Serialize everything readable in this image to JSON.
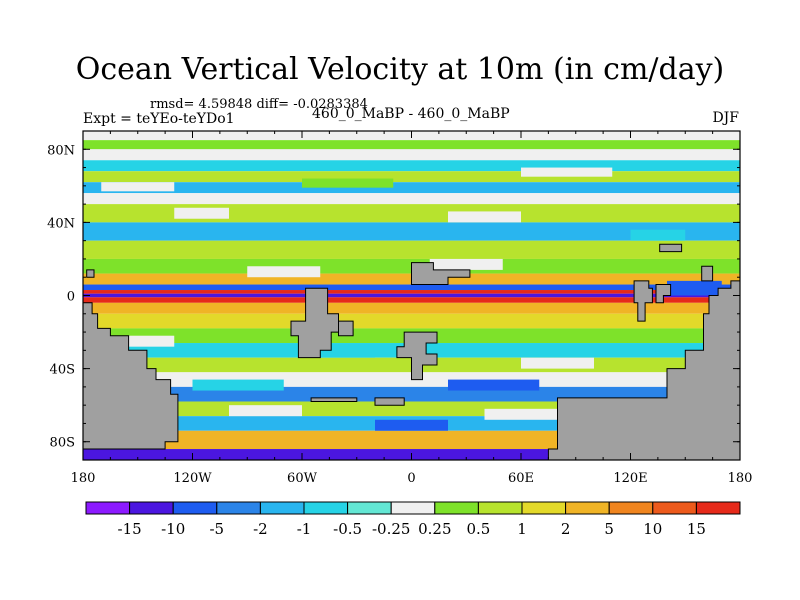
{
  "chart_data": {
    "type": "heatmap",
    "title": "Ocean Vertical Velocity at 10m (in cm/day)",
    "left_stats": "rmsd= 4.59848 diff= -0.0283384",
    "left_label": "Expt = teYEo-teYDo1",
    "center_label": "460_0_MaBP - 460_0_MaBP",
    "right_label": "DJF",
    "xlim": [
      -180,
      180
    ],
    "ylim": [
      -90,
      90
    ],
    "x_ticks": [
      {
        "value": -180,
        "label": "180"
      },
      {
        "value": -120,
        "label": "120W"
      },
      {
        "value": -60,
        "label": "60W"
      },
      {
        "value": 0,
        "label": "0"
      },
      {
        "value": 60,
        "label": "60E"
      },
      {
        "value": 120,
        "label": "120E"
      },
      {
        "value": 180,
        "label": "180"
      }
    ],
    "y_ticks": [
      {
        "value": 80,
        "label": "80N"
      },
      {
        "value": 40,
        "label": "40N"
      },
      {
        "value": 0,
        "label": "0"
      },
      {
        "value": -40,
        "label": "40S"
      },
      {
        "value": -80,
        "label": "80S"
      }
    ],
    "colorbar": {
      "labels": [
        "-15",
        "-10",
        "-5",
        "-2",
        "-1",
        "-0.5",
        "-0.25",
        "0.25",
        "0.5",
        "1",
        "2",
        "5",
        "10",
        "15"
      ],
      "colors": [
        "#8c1aff",
        "#4b16e0",
        "#1e5cf0",
        "#2b84e8",
        "#29b5ef",
        "#26d3e6",
        "#63e7d4",
        "#f0f0f0",
        "#7ee22a",
        "#b7e32e",
        "#e3d92a",
        "#f0b426",
        "#f0851f",
        "#ed5a1c",
        "#e62a1a"
      ]
    },
    "bands": [
      {
        "lat_top": 90,
        "lat_bottom": 85,
        "color": "#f0f0f0"
      },
      {
        "lat_top": 85,
        "lat_bottom": 80,
        "color": "#7ee22a"
      },
      {
        "lat_top": 80,
        "lat_bottom": 74,
        "color": "#f0f0f0"
      },
      {
        "lat_top": 74,
        "lat_bottom": 68,
        "color": "#26d3e6"
      },
      {
        "lat_top": 68,
        "lat_bottom": 62,
        "color": "#b7e32e"
      },
      {
        "lat_top": 62,
        "lat_bottom": 56,
        "color": "#29b5ef"
      },
      {
        "lat_top": 56,
        "lat_bottom": 50,
        "color": "#f0f0f0"
      },
      {
        "lat_top": 50,
        "lat_bottom": 40,
        "color": "#b7e32e"
      },
      {
        "lat_top": 40,
        "lat_bottom": 30,
        "color": "#29b5ef"
      },
      {
        "lat_top": 30,
        "lat_bottom": 20,
        "color": "#b7e32e"
      },
      {
        "lat_top": 20,
        "lat_bottom": 12,
        "color": "#7ee22a"
      },
      {
        "lat_top": 12,
        "lat_bottom": 6,
        "color": "#f0b426"
      },
      {
        "lat_top": 6,
        "lat_bottom": 3,
        "color": "#1e5cf0"
      },
      {
        "lat_top": 3,
        "lat_bottom": 1,
        "color": "#e62a1a"
      },
      {
        "lat_top": 1,
        "lat_bottom": -1,
        "color": "#4b16e0"
      },
      {
        "lat_top": -1,
        "lat_bottom": -4,
        "color": "#e62a1a"
      },
      {
        "lat_top": -4,
        "lat_bottom": -10,
        "color": "#f0b426"
      },
      {
        "lat_top": -10,
        "lat_bottom": -18,
        "color": "#e3d92a"
      },
      {
        "lat_top": -18,
        "lat_bottom": -26,
        "color": "#7ee22a"
      },
      {
        "lat_top": -26,
        "lat_bottom": -34,
        "color": "#26d3e6"
      },
      {
        "lat_top": -34,
        "lat_bottom": -42,
        "color": "#b7e32e"
      },
      {
        "lat_top": -42,
        "lat_bottom": -50,
        "color": "#f0f0f0"
      },
      {
        "lat_top": -50,
        "lat_bottom": -58,
        "color": "#2b84e8"
      },
      {
        "lat_top": -58,
        "lat_bottom": -66,
        "color": "#b7e32e"
      },
      {
        "lat_top": -66,
        "lat_bottom": -74,
        "color": "#29b5ef"
      },
      {
        "lat_top": -74,
        "lat_bottom": -84,
        "color": "#f0b426"
      },
      {
        "lat_top": -84,
        "lat_bottom": -90,
        "color": "#4b16e0"
      }
    ],
    "patches": [
      {
        "lon": -170,
        "lat": 62,
        "w": 40,
        "h": 5,
        "color": "#f0f0f0"
      },
      {
        "lon": -60,
        "lat": 64,
        "w": 50,
        "h": 5,
        "color": "#7ee22a"
      },
      {
        "lon": 60,
        "lat": 70,
        "w": 50,
        "h": 5,
        "color": "#f0f0f0"
      },
      {
        "lon": -130,
        "lat": 48,
        "w": 30,
        "h": 6,
        "color": "#f0f0f0"
      },
      {
        "lon": 20,
        "lat": 46,
        "w": 40,
        "h": 6,
        "color": "#f0f0f0"
      },
      {
        "lon": 120,
        "lat": 36,
        "w": 30,
        "h": 6,
        "color": "#26d3e6"
      },
      {
        "lon": -90,
        "lat": 16,
        "w": 40,
        "h": 6,
        "color": "#f0f0f0"
      },
      {
        "lon": 10,
        "lat": 20,
        "w": 40,
        "h": 6,
        "color": "#f0f0f0"
      },
      {
        "lon": 140,
        "lat": 8,
        "w": 30,
        "h": 8,
        "color": "#1e5cf0"
      },
      {
        "lon": -160,
        "lat": -22,
        "w": 30,
        "h": 6,
        "color": "#f0f0f0"
      },
      {
        "lon": -60,
        "lat": -28,
        "w": 40,
        "h": 6,
        "color": "#26d3e6"
      },
      {
        "lon": 60,
        "lat": -34,
        "w": 40,
        "h": 6,
        "color": "#f0f0f0"
      },
      {
        "lon": -120,
        "lat": -46,
        "w": 50,
        "h": 6,
        "color": "#26d3e6"
      },
      {
        "lon": 20,
        "lat": -46,
        "w": 50,
        "h": 6,
        "color": "#1e5cf0"
      },
      {
        "lon": -100,
        "lat": -60,
        "w": 40,
        "h": 6,
        "color": "#f0f0f0"
      },
      {
        "lon": 40,
        "lat": -62,
        "w": 60,
        "h": 6,
        "color": "#f0f0f0"
      },
      {
        "lon": -20,
        "lat": -68,
        "w": 40,
        "h": 6,
        "color": "#1e5cf0"
      }
    ],
    "land": [
      {
        "name": "land-southwest",
        "color": "#a0a0a0",
        "points": [
          [
            -180,
            -4
          ],
          [
            -175,
            -4
          ],
          [
            -175,
            -10
          ],
          [
            -172,
            -10
          ],
          [
            -172,
            -18
          ],
          [
            -165,
            -18
          ],
          [
            -165,
            -22
          ],
          [
            -155,
            -22
          ],
          [
            -155,
            -30
          ],
          [
            -145,
            -30
          ],
          [
            -145,
            -40
          ],
          [
            -140,
            -40
          ],
          [
            -140,
            -46
          ],
          [
            -132,
            -46
          ],
          [
            -132,
            -54
          ],
          [
            -128,
            -54
          ],
          [
            -128,
            -64
          ],
          [
            -128,
            -80
          ],
          [
            -135,
            -80
          ],
          [
            -135,
            -84
          ],
          [
            -180,
            -84
          ],
          [
            -180,
            -90
          ]
        ]
      },
      {
        "name": "land-southeast",
        "color": "#a0a0a0",
        "points": [
          [
            180,
            -90
          ],
          [
            180,
            8
          ],
          [
            175,
            8
          ],
          [
            175,
            4
          ],
          [
            168,
            4
          ],
          [
            168,
            0
          ],
          [
            163,
            0
          ],
          [
            163,
            -10
          ],
          [
            160,
            -10
          ],
          [
            160,
            -30
          ],
          [
            150,
            -30
          ],
          [
            150,
            -40
          ],
          [
            140,
            -40
          ],
          [
            140,
            -56
          ],
          [
            80,
            -56
          ],
          [
            80,
            -84
          ],
          [
            75,
            -84
          ],
          [
            75,
            -90
          ]
        ]
      },
      {
        "name": "land-island-1",
        "color": "#a0a0a0",
        "points": [
          [
            -58,
            4
          ],
          [
            -46,
            4
          ],
          [
            -46,
            -10
          ],
          [
            -40,
            -10
          ],
          [
            -40,
            -20
          ],
          [
            -44,
            -20
          ],
          [
            -44,
            -30
          ],
          [
            -50,
            -30
          ],
          [
            -50,
            -34
          ],
          [
            -62,
            -34
          ],
          [
            -62,
            -22
          ],
          [
            -66,
            -22
          ],
          [
            -66,
            -14
          ],
          [
            -58,
            -14
          ]
        ]
      },
      {
        "name": "land-island-2",
        "color": "#a0a0a0",
        "points": [
          [
            -40,
            -14
          ],
          [
            -32,
            -14
          ],
          [
            -32,
            -22
          ],
          [
            -40,
            -22
          ]
        ]
      },
      {
        "name": "land-island-3",
        "color": "#a0a0a0",
        "points": [
          [
            -4,
            -20
          ],
          [
            14,
            -20
          ],
          [
            14,
            -26
          ],
          [
            8,
            -26
          ],
          [
            8,
            -32
          ],
          [
            14,
            -32
          ],
          [
            14,
            -38
          ],
          [
            6,
            -38
          ],
          [
            6,
            -46
          ],
          [
            0,
            -46
          ],
          [
            0,
            -34
          ],
          [
            -8,
            -34
          ],
          [
            -8,
            -28
          ],
          [
            -4,
            -28
          ]
        ]
      },
      {
        "name": "land-island-4",
        "color": "#a0a0a0",
        "points": [
          [
            0,
            18
          ],
          [
            12,
            18
          ],
          [
            12,
            14
          ],
          [
            32,
            14
          ],
          [
            32,
            10
          ],
          [
            20,
            10
          ],
          [
            20,
            6
          ],
          [
            0,
            6
          ]
        ]
      },
      {
        "name": "land-island-5",
        "color": "#a0a0a0",
        "points": [
          [
            122,
            8
          ],
          [
            130,
            8
          ],
          [
            130,
            4
          ],
          [
            132,
            4
          ],
          [
            132,
            -4
          ],
          [
            128,
            -4
          ],
          [
            128,
            -14
          ],
          [
            124,
            -14
          ],
          [
            124,
            -4
          ],
          [
            122,
            -4
          ]
        ]
      },
      {
        "name": "land-island-6",
        "color": "#a0a0a0",
        "points": [
          [
            134,
            6
          ],
          [
            142,
            6
          ],
          [
            142,
            0
          ],
          [
            138,
            0
          ],
          [
            138,
            -4
          ],
          [
            134,
            -4
          ]
        ]
      },
      {
        "name": "land-island-7",
        "color": "#a0a0a0",
        "points": [
          [
            136,
            28
          ],
          [
            148,
            28
          ],
          [
            148,
            24
          ],
          [
            136,
            24
          ]
        ]
      },
      {
        "name": "land-island-8",
        "color": "#a0a0a0",
        "points": [
          [
            159,
            16
          ],
          [
            165,
            16
          ],
          [
            165,
            8
          ],
          [
            159,
            8
          ]
        ]
      },
      {
        "name": "land-island-9",
        "color": "#a0a0a0",
        "points": [
          [
            -178,
            14
          ],
          [
            -174,
            14
          ],
          [
            -174,
            10
          ],
          [
            -178,
            10
          ]
        ]
      },
      {
        "name": "land-island-10",
        "color": "#a0a0a0",
        "points": [
          [
            -55,
            -56
          ],
          [
            -30,
            -56
          ],
          [
            -30,
            -58
          ],
          [
            -55,
            -58
          ]
        ]
      },
      {
        "name": "land-island-11",
        "color": "#a0a0a0",
        "points": [
          [
            -20,
            -56
          ],
          [
            -4,
            -56
          ],
          [
            -4,
            -60
          ],
          [
            -20,
            -60
          ]
        ]
      }
    ]
  }
}
